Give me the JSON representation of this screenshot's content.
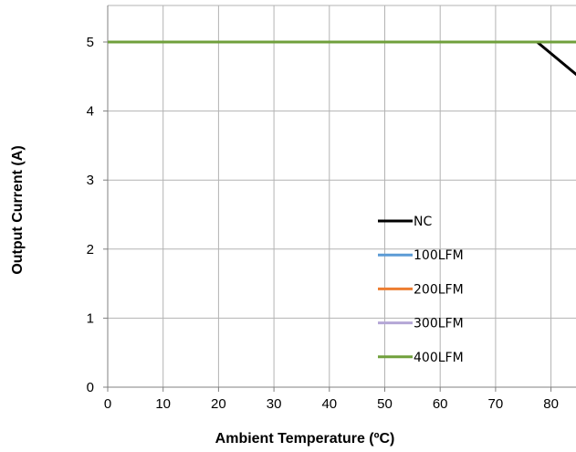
{
  "chart_data": {
    "type": "line",
    "title": "",
    "xlabel": "Ambient Temperature (ºC)",
    "ylabel": "Output Current (A)",
    "xlim": [
      0,
      85
    ],
    "ylim": [
      0,
      5.5
    ],
    "x_ticks": [
      0,
      10,
      20,
      30,
      40,
      50,
      60,
      70,
      80
    ],
    "y_ticks": [
      0,
      1,
      2,
      3,
      4,
      5
    ],
    "grid": true,
    "legend_position": "center",
    "series": [
      {
        "name": "NC",
        "color": "#000000",
        "points": [
          [
            0,
            5
          ],
          [
            77.5,
            5
          ],
          [
            85,
            4.5
          ]
        ]
      },
      {
        "name": "100LFM",
        "color": "#5b9bd5",
        "points": [
          [
            0,
            5
          ],
          [
            85,
            5
          ]
        ]
      },
      {
        "name": "200LFM",
        "color": "#ed7d31",
        "points": [
          [
            0,
            5
          ],
          [
            85,
            5
          ]
        ]
      },
      {
        "name": "300LFM",
        "color": "#b4a7d6",
        "points": [
          [
            0,
            5
          ],
          [
            85,
            5
          ]
        ]
      },
      {
        "name": "400LFM",
        "color": "#70a03c",
        "points": [
          [
            0,
            5
          ],
          [
            85,
            5
          ]
        ]
      }
    ]
  }
}
